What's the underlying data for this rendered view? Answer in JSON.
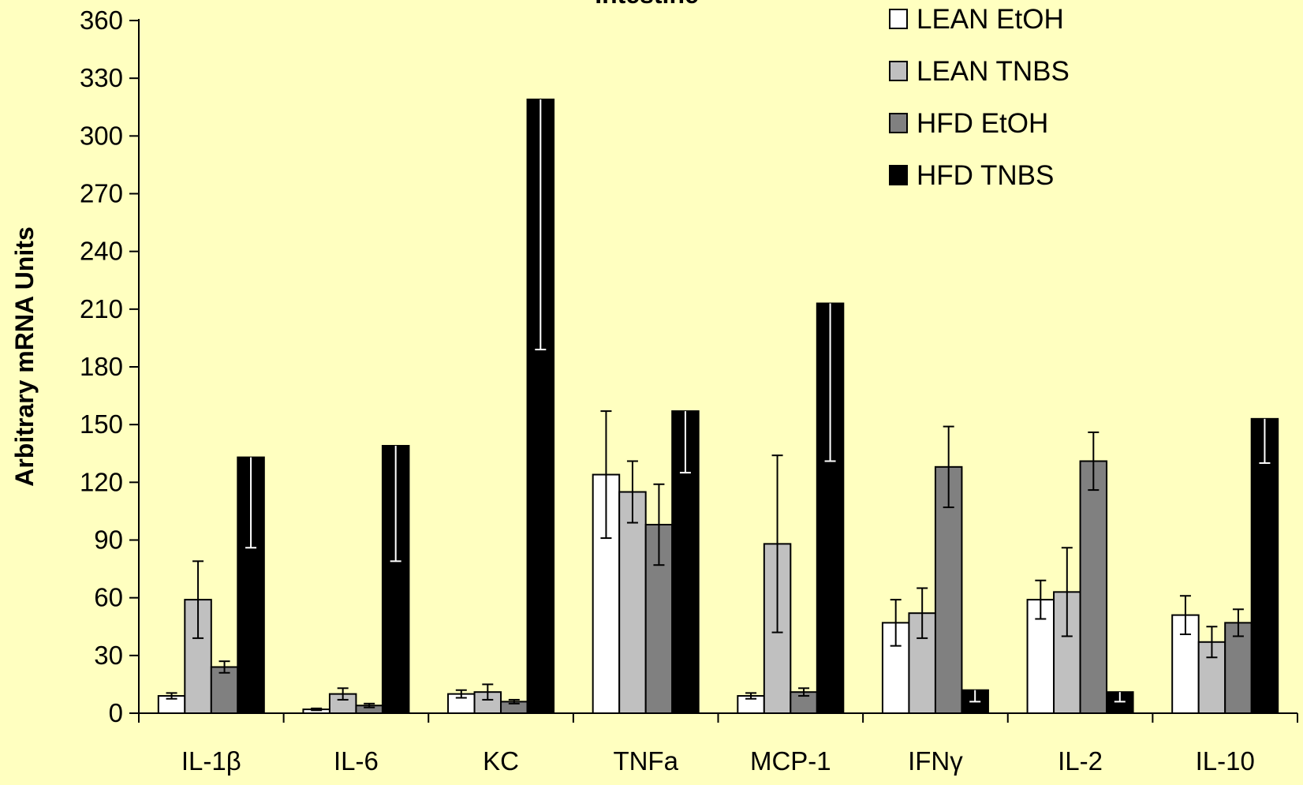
{
  "chart_data": {
    "type": "bar",
    "title": "Intestine",
    "xlabel": "",
    "ylabel": "Arbitrary mRNA Units",
    "ylim": [
      0,
      360
    ],
    "yticks": [
      0,
      30,
      60,
      90,
      120,
      150,
      180,
      210,
      240,
      270,
      300,
      330,
      360
    ],
    "grid": false,
    "legend_position": "top-right",
    "categories": [
      "IL-1β",
      "IL-6",
      "KC",
      "TNFa",
      "MCP-1",
      "IFNγ",
      "IL-2",
      "IL-10"
    ],
    "series": [
      {
        "name": "LEAN EtOH",
        "color": "#ffffff",
        "values": [
          9,
          2,
          10,
          124,
          9,
          47,
          59,
          51
        ],
        "errors": [
          1.5,
          0.5,
          2,
          33,
          1.5,
          12,
          10,
          10
        ]
      },
      {
        "name": "LEAN TNBS",
        "color": "#c0c0c0",
        "values": [
          59,
          10,
          11,
          115,
          88,
          52,
          63,
          37
        ],
        "errors": [
          20,
          3,
          4,
          16,
          46,
          13,
          23,
          8
        ]
      },
      {
        "name": "HFD EtOH",
        "color": "#808080",
        "values": [
          24,
          4,
          6,
          98,
          11,
          128,
          131,
          47
        ],
        "errors": [
          3,
          1,
          1,
          21,
          2,
          21,
          15,
          7
        ]
      },
      {
        "name": "HFD TNBS",
        "color": "#000000",
        "values": [
          133,
          139,
          319,
          157,
          213,
          12,
          11,
          153
        ],
        "errors": [
          47,
          60,
          130,
          32,
          82,
          6,
          5,
          23
        ]
      }
    ]
  }
}
